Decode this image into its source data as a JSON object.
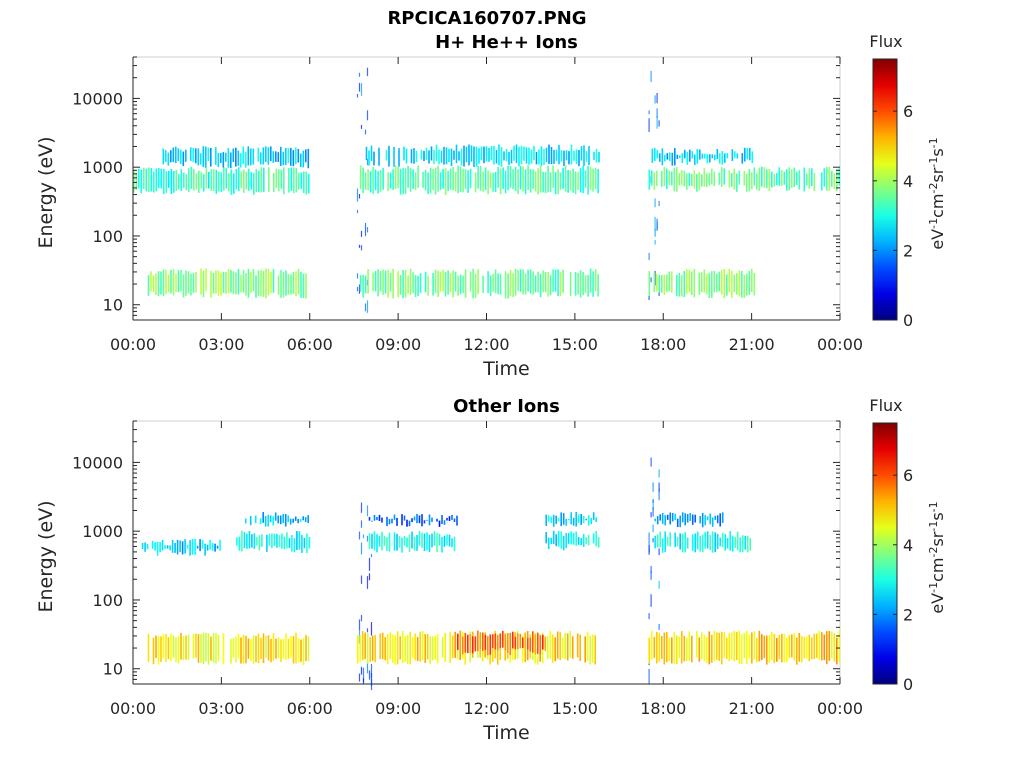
{
  "figure": {
    "title": "RPCICA160707.PNG"
  },
  "chart_data": [
    {
      "type": "heatmap",
      "title": "H+ He++ Ions",
      "xlabel": "Time",
      "ylabel": "Energy (eV)",
      "x_ticks": [
        "00:00",
        "03:00",
        "06:00",
        "09:00",
        "12:00",
        "15:00",
        "18:00",
        "21:00",
        "00:00"
      ],
      "x_range_hours": [
        0,
        24
      ],
      "y_scale": "log",
      "y_ticks": [
        10,
        100,
        1000,
        10000
      ],
      "y_tick_labels": [
        "10",
        "100",
        "1000",
        "10000"
      ],
      "y_range": [
        6,
        40000
      ],
      "colorbar": {
        "label": "Flux",
        "units": "eV-1cm-2sr-1s-1",
        "range": [
          0,
          7.5
        ],
        "ticks": [
          0,
          2,
          4,
          6
        ],
        "tick_labels": [
          "0",
          "2",
          "4",
          "6"
        ],
        "colormap": "jet"
      },
      "bands": [
        {
          "t_start": 0.0,
          "t_end": 6.0,
          "e_low": 450,
          "e_high": 900,
          "flux": 3.2
        },
        {
          "t_start": 1.0,
          "t_end": 6.0,
          "e_low": 1100,
          "e_high": 1800,
          "flux": 2.5
        },
        {
          "t_start": 0.5,
          "t_end": 6.0,
          "e_low": 14,
          "e_high": 30,
          "flux": 3.8
        },
        {
          "t_start": 7.6,
          "t_end": 8.1,
          "e_low": 7,
          "e_high": 40000,
          "flux": 1.6
        },
        {
          "t_start": 7.7,
          "t_end": 15.8,
          "e_low": 450,
          "e_high": 950,
          "flux": 3.4
        },
        {
          "t_start": 7.9,
          "t_end": 15.8,
          "e_low": 1150,
          "e_high": 1900,
          "flux": 2.6
        },
        {
          "t_start": 7.7,
          "t_end": 15.8,
          "e_low": 14,
          "e_high": 30,
          "flux": 3.6
        },
        {
          "t_start": 17.5,
          "t_end": 17.9,
          "e_low": 7,
          "e_high": 35000,
          "flux": 1.8
        },
        {
          "t_start": 17.5,
          "t_end": 24.0,
          "e_low": 500,
          "e_high": 900,
          "flux": 3.5
        },
        {
          "t_start": 17.6,
          "t_end": 21.0,
          "e_low": 1200,
          "e_high": 1700,
          "flux": 2.4
        },
        {
          "t_start": 17.5,
          "t_end": 21.2,
          "e_low": 14,
          "e_high": 30,
          "flux": 3.7
        }
      ]
    },
    {
      "type": "heatmap",
      "title": "Other Ions",
      "xlabel": "Time",
      "ylabel": "Energy (eV)",
      "x_ticks": [
        "00:00",
        "03:00",
        "06:00",
        "09:00",
        "12:00",
        "15:00",
        "18:00",
        "21:00",
        "00:00"
      ],
      "x_range_hours": [
        0,
        24
      ],
      "y_scale": "log",
      "y_ticks": [
        10,
        100,
        1000,
        10000
      ],
      "y_tick_labels": [
        "10",
        "100",
        "1000",
        "10000"
      ],
      "y_range": [
        6,
        40000
      ],
      "colorbar": {
        "label": "Flux",
        "units": "eV-1cm-2sr-1s-1",
        "range": [
          0,
          7.5
        ],
        "ticks": [
          0,
          2,
          4,
          6
        ],
        "tick_labels": [
          "0",
          "2",
          "4",
          "6"
        ],
        "colormap": "jet"
      },
      "bands": [
        {
          "t_start": 0.3,
          "t_end": 3.0,
          "e_low": 500,
          "e_high": 700,
          "flux": 2.4
        },
        {
          "t_start": 3.5,
          "t_end": 6.0,
          "e_low": 550,
          "e_high": 900,
          "flux": 2.9
        },
        {
          "t_start": 3.8,
          "t_end": 6.0,
          "e_low": 1300,
          "e_high": 1700,
          "flux": 2.3
        },
        {
          "t_start": 0.5,
          "t_end": 6.0,
          "e_low": 13,
          "e_high": 30,
          "flux": 4.8
        },
        {
          "t_start": 7.6,
          "t_end": 8.1,
          "e_low": 7,
          "e_high": 3000,
          "flux": 1.5
        },
        {
          "t_start": 8.0,
          "t_end": 11.0,
          "e_low": 550,
          "e_high": 900,
          "flux": 2.9
        },
        {
          "t_start": 8.0,
          "t_end": 11.0,
          "e_low": 1300,
          "e_high": 1600,
          "flux": 1.6
        },
        {
          "t_start": 14.0,
          "t_end": 15.8,
          "e_low": 600,
          "e_high": 900,
          "flux": 2.8
        },
        {
          "t_start": 14.0,
          "t_end": 15.8,
          "e_low": 1300,
          "e_high": 1700,
          "flux": 2.6
        },
        {
          "t_start": 7.6,
          "t_end": 15.8,
          "e_low": 13,
          "e_high": 32,
          "flux": 4.9
        },
        {
          "t_start": 11.0,
          "t_end": 14.0,
          "e_low": 18,
          "e_high": 32,
          "flux": 5.8
        },
        {
          "t_start": 17.5,
          "t_end": 17.9,
          "e_low": 7,
          "e_high": 12000,
          "flux": 1.8
        },
        {
          "t_start": 17.7,
          "t_end": 21.0,
          "e_low": 550,
          "e_high": 900,
          "flux": 2.9
        },
        {
          "t_start": 17.7,
          "t_end": 20.0,
          "e_low": 1300,
          "e_high": 1700,
          "flux": 2.1
        },
        {
          "t_start": 17.5,
          "t_end": 24.0,
          "e_low": 13,
          "e_high": 32,
          "flux": 5.0
        }
      ]
    }
  ]
}
